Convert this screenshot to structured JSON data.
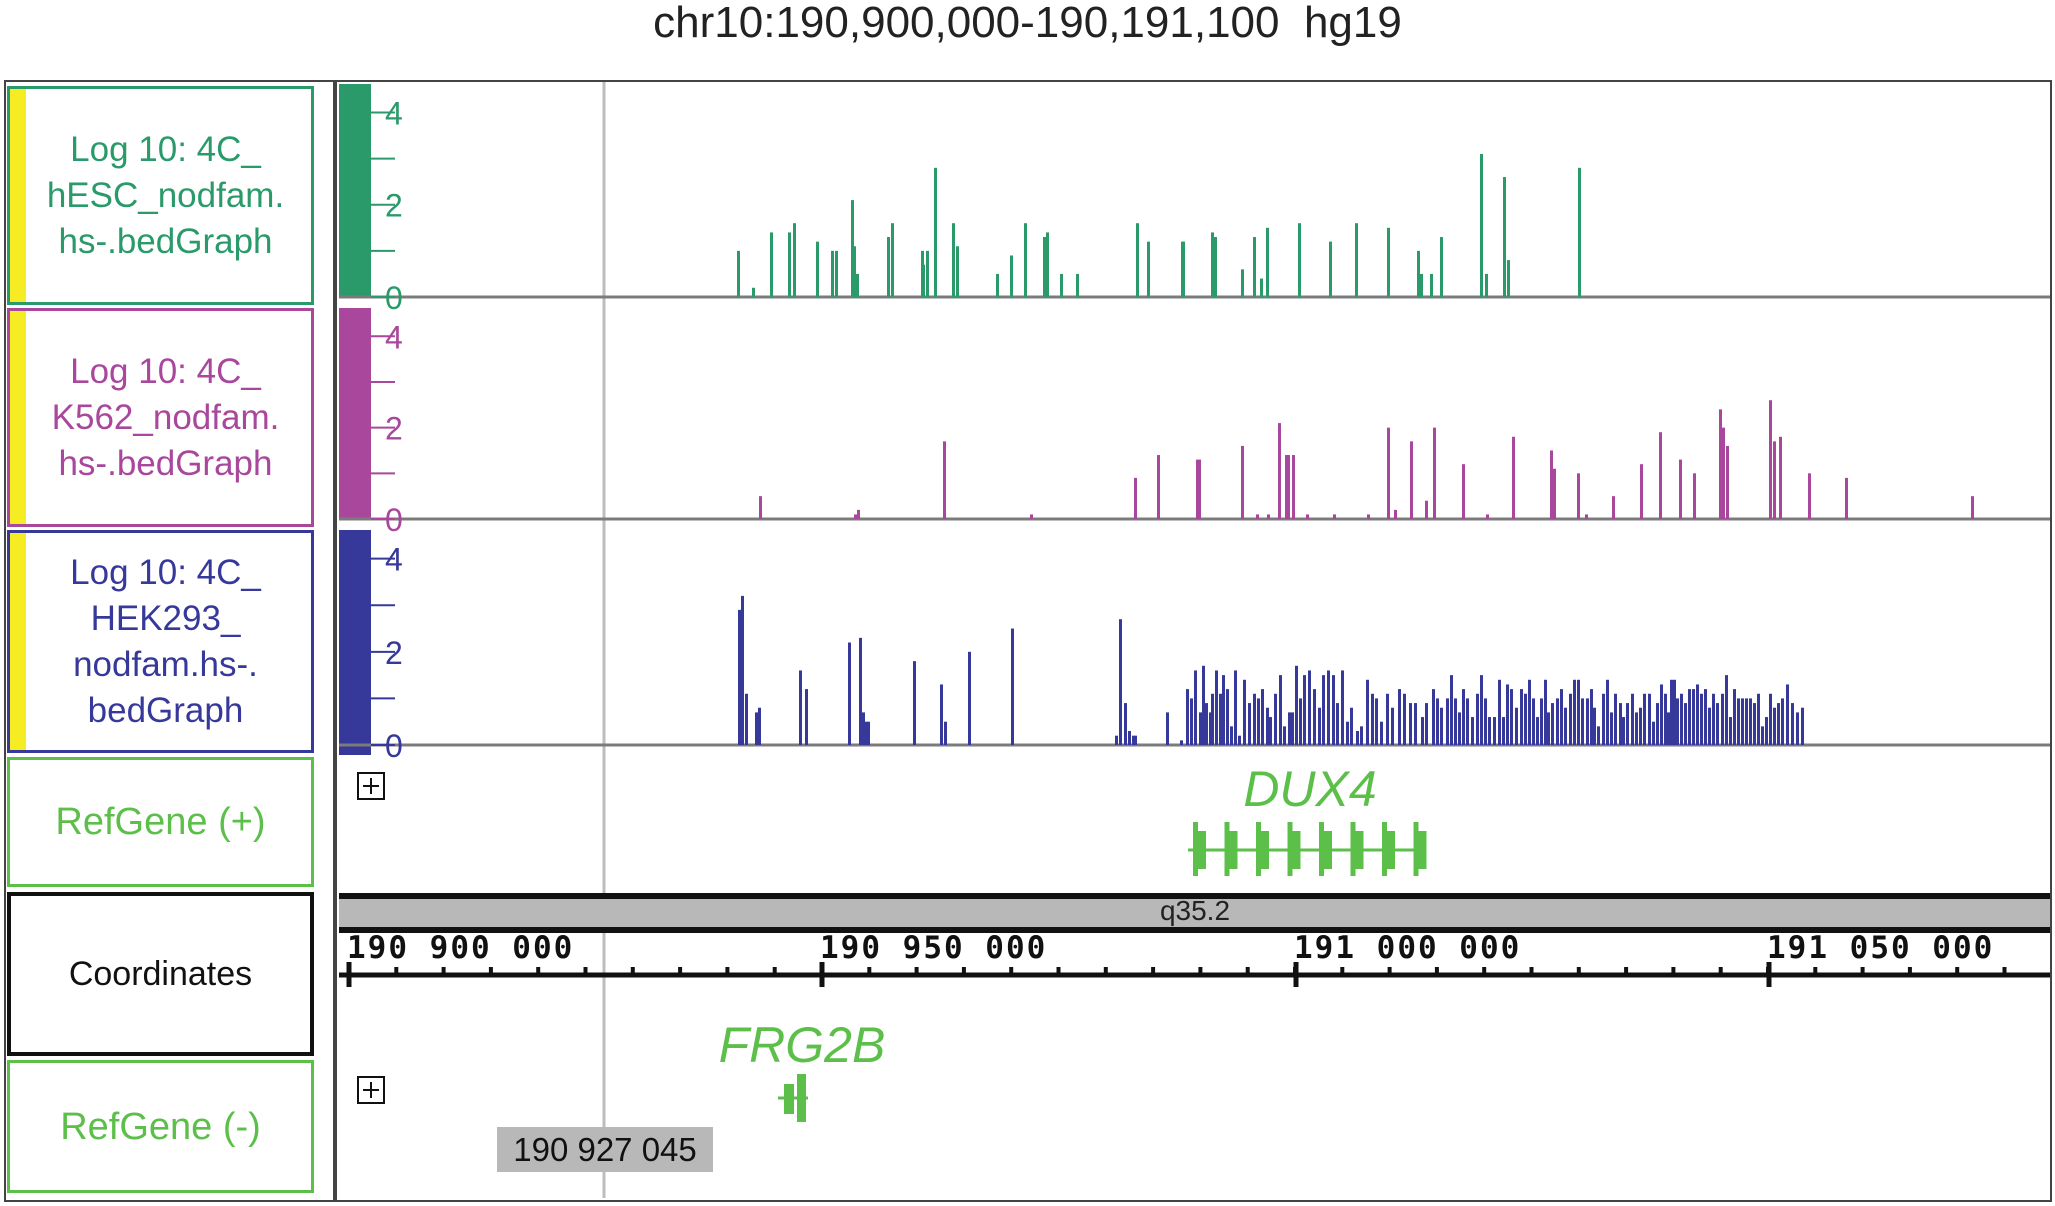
{
  "header": {
    "locus": "chr10:190,900,000-190,191,100",
    "genome": "hg19"
  },
  "tracks": [
    {
      "id": "hesc",
      "label": "Log 10: 4C_\nhESC_nodfam.\nhs-.bedGraph",
      "color": "#2a9a6a",
      "axis": [
        "4",
        "2",
        "0"
      ],
      "bars": [
        [
          391,
          1.0
        ],
        [
          406,
          0.2
        ],
        [
          424,
          1.4
        ],
        [
          442,
          1.4
        ],
        [
          447,
          1.6
        ],
        [
          470,
          1.2
        ],
        [
          485,
          1.0
        ],
        [
          489,
          1.0
        ],
        [
          505,
          2.1
        ],
        [
          507,
          1.1
        ],
        [
          510,
          0.5
        ],
        [
          541,
          1.3
        ],
        [
          545,
          1.6
        ],
        [
          575,
          1.0
        ],
        [
          576,
          0.7
        ],
        [
          580,
          1.0
        ],
        [
          588,
          2.8
        ],
        [
          606,
          1.6
        ],
        [
          610,
          1.1
        ],
        [
          650,
          0.5
        ],
        [
          664,
          0.9
        ],
        [
          678,
          1.6
        ],
        [
          697,
          1.3
        ],
        [
          700,
          1.4
        ],
        [
          714,
          0.5
        ],
        [
          730,
          0.5
        ],
        [
          790,
          1.6
        ],
        [
          801,
          1.2
        ],
        [
          835,
          1.2
        ],
        [
          836,
          1.2
        ],
        [
          865,
          1.4
        ],
        [
          868,
          1.3
        ],
        [
          895,
          0.6
        ],
        [
          907,
          1.3
        ],
        [
          914,
          0.4
        ],
        [
          920,
          1.5
        ],
        [
          952,
          1.6
        ],
        [
          983,
          1.2
        ],
        [
          1009,
          1.6
        ],
        [
          1041,
          1.5
        ],
        [
          1071,
          1.0
        ],
        [
          1074,
          0.5
        ],
        [
          1084,
          0.5
        ],
        [
          1094,
          1.3
        ],
        [
          1134,
          3.1
        ],
        [
          1139,
          0.5
        ],
        [
          1157,
          2.6
        ],
        [
          1161,
          0.8
        ],
        [
          1232,
          2.8
        ]
      ]
    },
    {
      "id": "k562",
      "label": "Log 10: 4C_\nK562_nodfam.\nhs-.bedGraph",
      "color": "#a8479c",
      "axis": [
        "4",
        "2",
        "0"
      ],
      "bars": [
        [
          413,
          0.5
        ],
        [
          508,
          0.1
        ],
        [
          511,
          0.2
        ],
        [
          597,
          1.7
        ],
        [
          684,
          0.1
        ],
        [
          788,
          0.9
        ],
        [
          811,
          1.4
        ],
        [
          850,
          1.3
        ],
        [
          852,
          1.3
        ],
        [
          895,
          1.6
        ],
        [
          910,
          0.1
        ],
        [
          921,
          0.1
        ],
        [
          932,
          2.1
        ],
        [
          939,
          1.4
        ],
        [
          941,
          1.4
        ],
        [
          946,
          1.4
        ],
        [
          960,
          0.1
        ],
        [
          987,
          0.1
        ],
        [
          1021,
          0.1
        ],
        [
          1041,
          2.0
        ],
        [
          1048,
          0.2
        ],
        [
          1064,
          1.7
        ],
        [
          1079,
          0.4
        ],
        [
          1087,
          2.0
        ],
        [
          1116,
          1.2
        ],
        [
          1140,
          0.1
        ],
        [
          1166,
          1.8
        ],
        [
          1204,
          1.5
        ],
        [
          1207,
          1.1
        ],
        [
          1231,
          1.0
        ],
        [
          1239,
          0.1
        ],
        [
          1266,
          0.5
        ],
        [
          1294,
          1.2
        ],
        [
          1313,
          1.9
        ],
        [
          1333,
          1.3
        ],
        [
          1347,
          1.0
        ],
        [
          1373,
          2.4
        ],
        [
          1376,
          2.0
        ],
        [
          1380,
          1.6
        ],
        [
          1423,
          2.6
        ],
        [
          1427,
          1.7
        ],
        [
          1433,
          1.8
        ],
        [
          1462,
          1.0
        ],
        [
          1499,
          0.9
        ],
        [
          1625,
          0.5
        ]
      ]
    },
    {
      "id": "hek293",
      "label": "Log 10: 4C_\nHEK293_\nnodfam.hs-.\nbedGraph",
      "color": "#36399a",
      "axis": [
        "4",
        "2",
        "0"
      ],
      "bars": []
    }
  ],
  "hek293_bars": [
    [
      738,
      2.9
    ],
    [
      741,
      3.2
    ],
    [
      745,
      1.1
    ],
    [
      755,
      0.7
    ],
    [
      758,
      0.8
    ],
    [
      799,
      1.6
    ],
    [
      805,
      1.2
    ],
    [
      848,
      2.2
    ],
    [
      859,
      2.3
    ],
    [
      862,
      0.7
    ],
    [
      865,
      0.5
    ],
    [
      867,
      0.5
    ],
    [
      913,
      1.8
    ],
    [
      940,
      1.3
    ],
    [
      944,
      0.5
    ],
    [
      968,
      2.0
    ],
    [
      1011,
      2.5
    ],
    [
      1115,
      0.2
    ],
    [
      1119,
      2.7
    ],
    [
      1124,
      0.9
    ],
    [
      1128,
      0.3
    ],
    [
      1132,
      0.2
    ],
    [
      1134,
      0.2
    ],
    [
      1166,
      0.7
    ],
    [
      1180,
      0.1
    ],
    [
      1186,
      1.2
    ],
    [
      1190,
      1.0
    ],
    [
      1194,
      1.6
    ],
    [
      1199,
      0.7
    ],
    [
      1202,
      1.7
    ],
    [
      1205,
      0.9
    ],
    [
      1209,
      0.7
    ],
    [
      1211,
      1.1
    ],
    [
      1215,
      1.6
    ],
    [
      1219,
      1.1
    ],
    [
      1222,
      1.5
    ],
    [
      1226,
      1.2
    ],
    [
      1230,
      0.4
    ],
    [
      1234,
      1.6
    ],
    [
      1238,
      0.2
    ],
    [
      1243,
      1.4
    ],
    [
      1248,
      0.9
    ],
    [
      1253,
      1.1
    ],
    [
      1257,
      1.0
    ],
    [
      1261,
      1.2
    ],
    [
      1266,
      0.8
    ],
    [
      1269,
      0.6
    ],
    [
      1274,
      1.1
    ],
    [
      1279,
      1.5
    ],
    [
      1283,
      0.4
    ],
    [
      1288,
      0.7
    ],
    [
      1291,
      0.7
    ],
    [
      1295,
      1.7
    ],
    [
      1299,
      1.0
    ],
    [
      1303,
      1.5
    ],
    [
      1308,
      1.6
    ],
    [
      1313,
      1.2
    ],
    [
      1318,
      0.8
    ],
    [
      1322,
      1.5
    ],
    [
      1327,
      1.6
    ],
    [
      1332,
      1.5
    ],
    [
      1336,
      0.9
    ],
    [
      1341,
      1.6
    ],
    [
      1346,
      0.5
    ],
    [
      1350,
      0.8
    ],
    [
      1356,
      0.3
    ],
    [
      1360,
      0.4
    ],
    [
      1366,
      1.4
    ],
    [
      1371,
      1.1
    ],
    [
      1375,
      1.0
    ],
    [
      1380,
      0.5
    ],
    [
      1386,
      1.1
    ],
    [
      1391,
      0.8
    ],
    [
      1398,
      1.2
    ],
    [
      1403,
      1.1
    ],
    [
      1409,
      0.9
    ],
    [
      1414,
      0.9
    ],
    [
      1421,
      0.6
    ],
    [
      1425,
      0.9
    ],
    [
      1432,
      1.2
    ],
    [
      1436,
      1.0
    ],
    [
      1440,
      0.8
    ],
    [
      1446,
      1.0
    ],
    [
      1450,
      1.5
    ],
    [
      1454,
      1.0
    ],
    [
      1458,
      0.7
    ],
    [
      1462,
      1.2
    ],
    [
      1466,
      1.0
    ],
    [
      1471,
      0.6
    ],
    [
      1476,
      1.1
    ],
    [
      1480,
      1.5
    ],
    [
      1484,
      1.0
    ],
    [
      1488,
      0.6
    ],
    [
      1493,
      0.6
    ],
    [
      1498,
      1.4
    ],
    [
      1502,
      0.6
    ],
    [
      1506,
      1.3
    ],
    [
      1510,
      1.2
    ],
    [
      1515,
      0.8
    ],
    [
      1520,
      1.2
    ],
    [
      1524,
      1.1
    ],
    [
      1528,
      1.4
    ],
    [
      1532,
      1.0
    ],
    [
      1536,
      0.6
    ],
    [
      1540,
      1.0
    ],
    [
      1544,
      1.4
    ],
    [
      1547,
      0.7
    ],
    [
      1551,
      0.9
    ],
    [
      1556,
      1.0
    ],
    [
      1560,
      1.2
    ],
    [
      1564,
      0.8
    ],
    [
      1569,
      1.1
    ],
    [
      1573,
      1.4
    ],
    [
      1577,
      1.4
    ],
    [
      1581,
      1.0
    ],
    [
      1586,
      1.0
    ],
    [
      1590,
      1.2
    ],
    [
      1593,
      0.8
    ],
    [
      1597,
      0.4
    ],
    [
      1602,
      1.1
    ],
    [
      1606,
      1.4
    ],
    [
      1610,
      0.7
    ],
    [
      1614,
      1.1
    ],
    [
      1619,
      0.9
    ],
    [
      1622,
      0.6
    ],
    [
      1626,
      0.9
    ],
    [
      1631,
      1.1
    ],
    [
      1635,
      0.7
    ],
    [
      1639,
      0.8
    ],
    [
      1643,
      1.1
    ],
    [
      1648,
      1.1
    ],
    [
      1652,
      0.5
    ],
    [
      1656,
      0.9
    ],
    [
      1660,
      1.3
    ],
    [
      1664,
      1.1
    ],
    [
      1667,
      0.7
    ],
    [
      1670,
      1.4
    ],
    [
      1673,
      1.4
    ],
    [
      1676,
      1.0
    ],
    [
      1680,
      1.1
    ],
    [
      1684,
      0.9
    ],
    [
      1688,
      1.2
    ],
    [
      1692,
      1.2
    ],
    [
      1696,
      1.3
    ],
    [
      1700,
      1.1
    ],
    [
      1704,
      1.2
    ],
    [
      1708,
      0.8
    ],
    [
      1712,
      1.1
    ],
    [
      1716,
      0.9
    ],
    [
      1721,
      1.1
    ],
    [
      1725,
      1.5
    ],
    [
      1729,
      0.6
    ],
    [
      1733,
      1.2
    ],
    [
      1737,
      1.0
    ],
    [
      1741,
      1.0
    ],
    [
      1745,
      1.0
    ],
    [
      1749,
      1.0
    ],
    [
      1753,
      0.9
    ],
    [
      1757,
      1.1
    ],
    [
      1761,
      0.4
    ],
    [
      1765,
      0.6
    ],
    [
      1769,
      1.1
    ],
    [
      1773,
      0.8
    ],
    [
      1777,
      0.9
    ],
    [
      1781,
      1.0
    ],
    [
      1786,
      1.3
    ],
    [
      1791,
      0.9
    ],
    [
      1796,
      0.7
    ],
    [
      1801,
      0.8
    ]
  ],
  "refgene_plus": {
    "label": "RefGene (+)",
    "color": "#5cbf4a",
    "gene_name": "DUX4"
  },
  "coordinates": {
    "label": "Coordinates",
    "band": "q35.2",
    "ticks": [
      "190 900 000",
      "190 950 000",
      "191 000 000",
      "191 050 000"
    ]
  },
  "refgene_minus": {
    "label": "RefGene (-)",
    "color": "#5cbf4a",
    "gene_name": "FRG2B"
  },
  "position_readout": "190 927 045",
  "colors": {
    "yellow_handle": "#f5ec23",
    "grid": "#7b7b7b",
    "band_fill": "#b8b8b8"
  }
}
